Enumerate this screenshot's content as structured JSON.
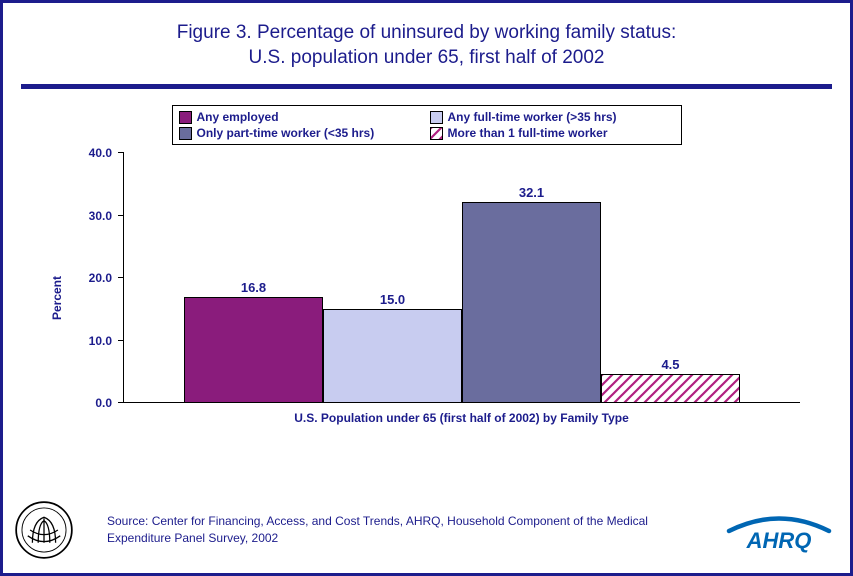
{
  "title_line1": "Figure 3.  Percentage of uninsured by working family status:",
  "title_line2": "U.S. population under 65, first half of 2002",
  "legend": {
    "items": [
      {
        "label": "Any employed",
        "fill": "#8a1c7c",
        "pattern": "solid"
      },
      {
        "label": "Any full-time worker (>35 hrs)",
        "fill": "#c8ccf0",
        "pattern": "solid"
      },
      {
        "label": "Only part-time worker (<35 hrs)",
        "fill": "#6a6d9e",
        "pattern": "solid"
      },
      {
        "label": "More than 1 full-time worker",
        "fill": "#b02080",
        "pattern": "hatch"
      }
    ],
    "border_color": "#000000",
    "font_size": 12,
    "text_color": "#1c1c8c"
  },
  "chart": {
    "type": "bar",
    "y_label": "Percent",
    "x_label": "U.S. Population under 65 (first half of 2002) by Family Type",
    "ylim": [
      0.0,
      40.0
    ],
    "ytick_step": 10.0,
    "ytick_decimals": 1,
    "bars": [
      {
        "value": 16.8,
        "fill": "#8a1c7c",
        "pattern": "solid"
      },
      {
        "value": 15.0,
        "fill": "#c8ccf0",
        "pattern": "solid"
      },
      {
        "value": 32.1,
        "fill": "#6a6d9e",
        "pattern": "solid"
      },
      {
        "value": 4.5,
        "fill": "#b02080",
        "pattern": "hatch"
      }
    ],
    "bar_border": "#000000",
    "axis_color": "#000000",
    "label_color": "#1c1c8c",
    "label_fontsize": 12,
    "value_fontsize": 13,
    "background": "#ffffff"
  },
  "source_text": "Source: Center for Financing, Access, and Cost Trends, AHRQ, Household Component of the Medical Expenditure Panel Survey, 2002",
  "logos": {
    "hhs_name": "hhs-seal",
    "ahrq_name": "ahrq-logo",
    "ahrq_text": "AHRQ"
  },
  "frame_border_color": "#1c1c8c",
  "accent_color": "#1c1c8c"
}
